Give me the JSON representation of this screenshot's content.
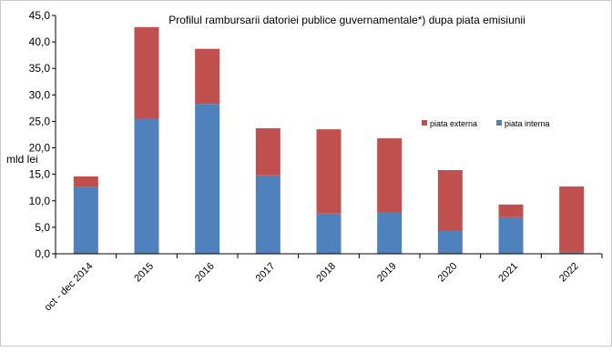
{
  "chart_data": {
    "type": "bar",
    "stacked": true,
    "title": "Profilul  rambursarii datoriei publice guvernamentale*) dupa piata emisiunii",
    "ylabel": "mld lei",
    "xlabel": "",
    "ylim": [
      0,
      45
    ],
    "ytick_step": 5,
    "ytick_labels": [
      "0,0",
      "5,0",
      "10,0",
      "15,0",
      "20,0",
      "25,0",
      "30,0",
      "35,0",
      "40,0",
      "45,0"
    ],
    "grid": false,
    "legend_position": "right",
    "categories": [
      "oct - dec 2014",
      "2015",
      "2016",
      "2017",
      "2018",
      "2019",
      "2020",
      "2021",
      "2022"
    ],
    "series": [
      {
        "name": "piata interna",
        "color": "#4f81bd",
        "values": [
          12.7,
          25.5,
          28.3,
          14.8,
          7.6,
          7.9,
          4.3,
          6.9,
          0.2
        ]
      },
      {
        "name": "piata externa",
        "color": "#c0504d",
        "values": [
          1.9,
          17.3,
          10.4,
          8.9,
          15.9,
          13.9,
          11.5,
          2.4,
          12.5
        ]
      }
    ]
  }
}
